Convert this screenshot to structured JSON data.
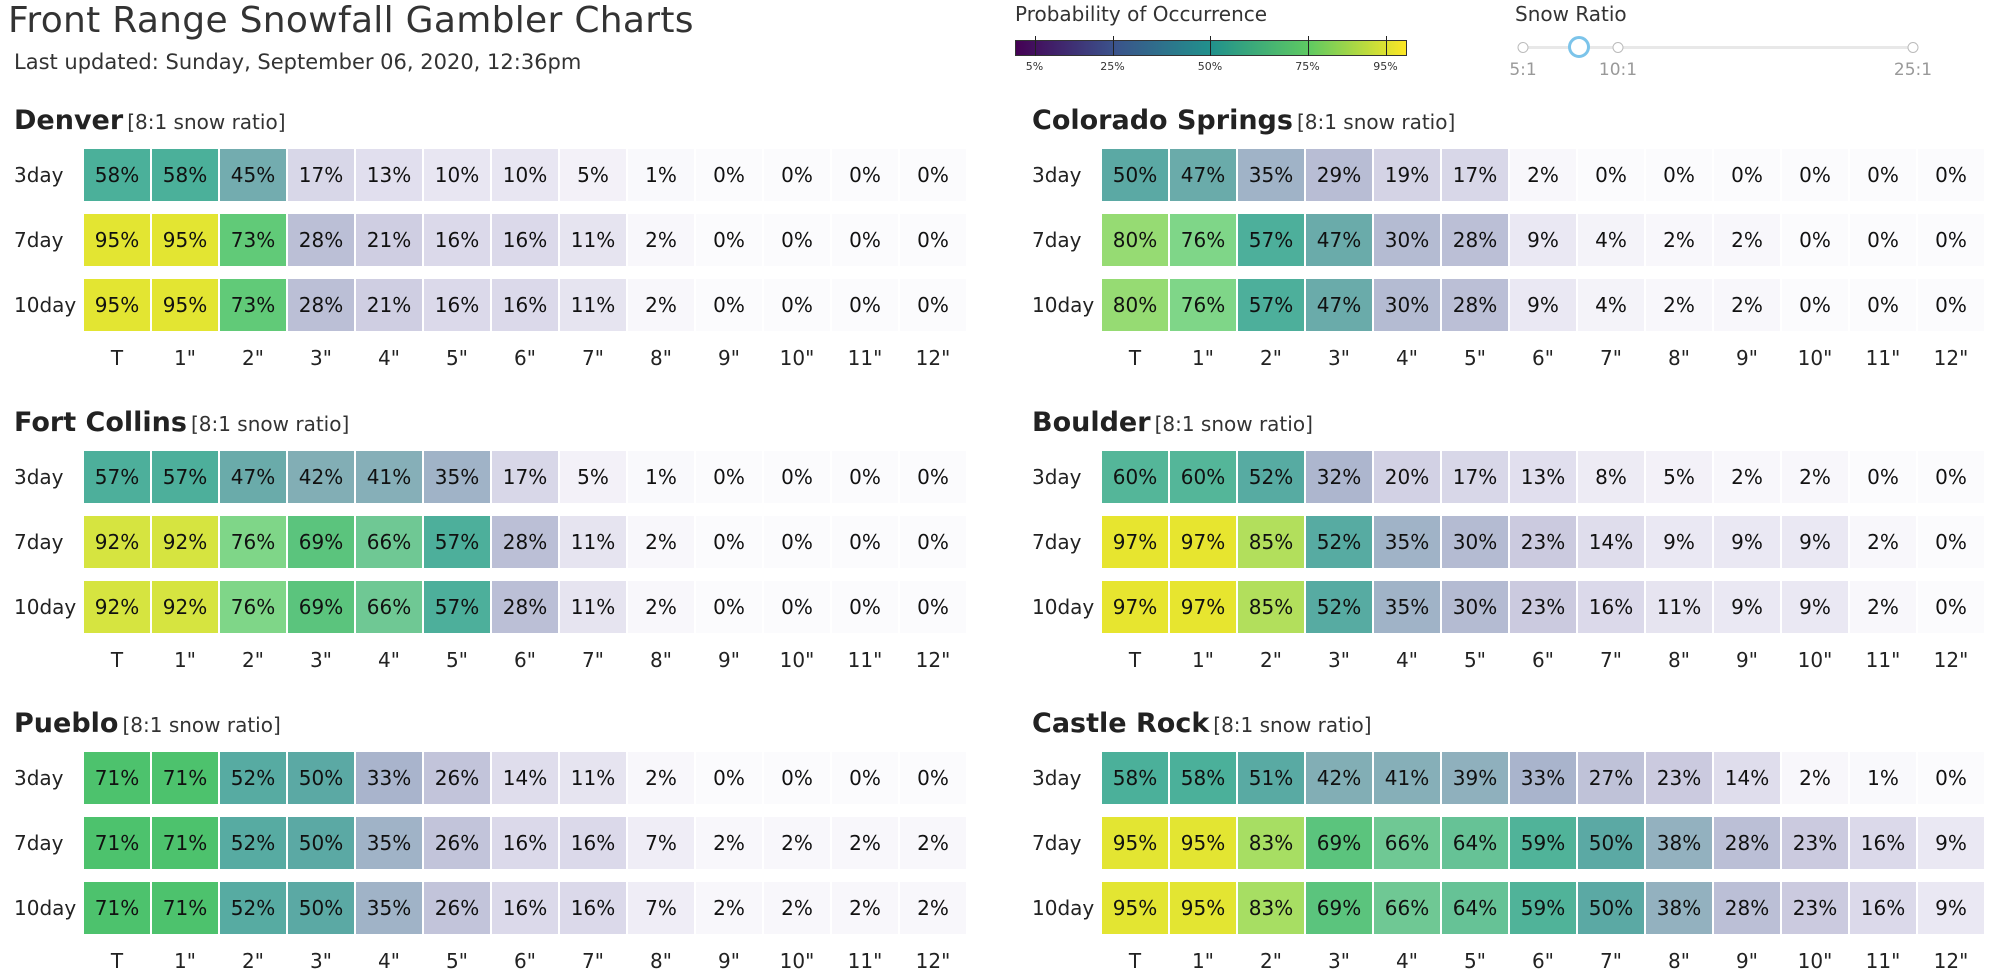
{
  "header": {
    "title": "Front Range Snowfall Gambler Charts",
    "updated": "Last updated: Sunday, September 06, 2020, 12:36pm"
  },
  "legend": {
    "title": "Probability of Occurrence",
    "colormap": [
      "#440154",
      "#3b528b",
      "#21918c",
      "#5ec962",
      "#fde725"
    ],
    "ticks": [
      {
        "label": "5%",
        "value": 5
      },
      {
        "label": "25%",
        "value": 25
      },
      {
        "label": "50%",
        "value": 50
      },
      {
        "label": "75%",
        "value": 75
      },
      {
        "label": "95%",
        "value": 95
      }
    ]
  },
  "snow_ratio": {
    "title": "Snow Ratio",
    "labels": [
      "5:1",
      "10:1",
      "25:1"
    ],
    "selected": "8:1",
    "min": 5,
    "max": 25,
    "value": 8
  },
  "chart_data": [
    {
      "type": "heatmap",
      "title": "Denver",
      "ratio_label": "[8:1 snow ratio]",
      "rows": [
        "3day",
        "7day",
        "10day"
      ],
      "categories": [
        "T",
        "1\"",
        "2\"",
        "3\"",
        "4\"",
        "5\"",
        "6\"",
        "7\"",
        "8\"",
        "9\"",
        "10\"",
        "11\"",
        "12\""
      ],
      "values": [
        [
          58,
          58,
          45,
          17,
          13,
          10,
          10,
          5,
          1,
          0,
          0,
          0,
          0
        ],
        [
          95,
          95,
          73,
          28,
          21,
          16,
          16,
          11,
          2,
          0,
          0,
          0,
          0
        ],
        [
          95,
          95,
          73,
          28,
          21,
          16,
          16,
          11,
          2,
          0,
          0,
          0,
          0
        ]
      ]
    },
    {
      "type": "heatmap",
      "title": "Colorado Springs",
      "ratio_label": "[8:1 snow ratio]",
      "rows": [
        "3day",
        "7day",
        "10day"
      ],
      "categories": [
        "T",
        "1\"",
        "2\"",
        "3\"",
        "4\"",
        "5\"",
        "6\"",
        "7\"",
        "8\"",
        "9\"",
        "10\"",
        "11\"",
        "12\""
      ],
      "values": [
        [
          50,
          47,
          35,
          29,
          19,
          17,
          2,
          0,
          0,
          0,
          0,
          0,
          0
        ],
        [
          80,
          76,
          57,
          47,
          30,
          28,
          9,
          4,
          2,
          2,
          0,
          0,
          0
        ],
        [
          80,
          76,
          57,
          47,
          30,
          28,
          9,
          4,
          2,
          2,
          0,
          0,
          0
        ]
      ]
    },
    {
      "type": "heatmap",
      "title": "Fort Collins",
      "ratio_label": "[8:1 snow ratio]",
      "rows": [
        "3day",
        "7day",
        "10day"
      ],
      "categories": [
        "T",
        "1\"",
        "2\"",
        "3\"",
        "4\"",
        "5\"",
        "6\"",
        "7\"",
        "8\"",
        "9\"",
        "10\"",
        "11\"",
        "12\""
      ],
      "values": [
        [
          57,
          57,
          47,
          42,
          41,
          35,
          17,
          5,
          1,
          0,
          0,
          0,
          0
        ],
        [
          92,
          92,
          76,
          69,
          66,
          57,
          28,
          11,
          2,
          0,
          0,
          0,
          0
        ],
        [
          92,
          92,
          76,
          69,
          66,
          57,
          28,
          11,
          2,
          0,
          0,
          0,
          0
        ]
      ]
    },
    {
      "type": "heatmap",
      "title": "Boulder",
      "ratio_label": "[8:1 snow ratio]",
      "rows": [
        "3day",
        "7day",
        "10day"
      ],
      "categories": [
        "T",
        "1\"",
        "2\"",
        "3\"",
        "4\"",
        "5\"",
        "6\"",
        "7\"",
        "8\"",
        "9\"",
        "10\"",
        "11\"",
        "12\""
      ],
      "values": [
        [
          60,
          60,
          52,
          32,
          20,
          17,
          13,
          8,
          5,
          2,
          2,
          0,
          0
        ],
        [
          97,
          97,
          85,
          52,
          35,
          30,
          23,
          14,
          9,
          9,
          9,
          2,
          0
        ],
        [
          97,
          97,
          85,
          52,
          35,
          30,
          23,
          16,
          11,
          9,
          9,
          2,
          0
        ]
      ]
    },
    {
      "type": "heatmap",
      "title": "Pueblo",
      "ratio_label": "[8:1 snow ratio]",
      "rows": [
        "3day",
        "7day",
        "10day"
      ],
      "categories": [
        "T",
        "1\"",
        "2\"",
        "3\"",
        "4\"",
        "5\"",
        "6\"",
        "7\"",
        "8\"",
        "9\"",
        "10\"",
        "11\"",
        "12\""
      ],
      "values": [
        [
          71,
          71,
          52,
          50,
          33,
          26,
          14,
          11,
          2,
          0,
          0,
          0,
          0
        ],
        [
          71,
          71,
          52,
          50,
          35,
          26,
          16,
          16,
          7,
          2,
          2,
          2,
          2
        ],
        [
          71,
          71,
          52,
          50,
          35,
          26,
          16,
          16,
          7,
          2,
          2,
          2,
          2
        ]
      ]
    },
    {
      "type": "heatmap",
      "title": "Castle Rock",
      "ratio_label": "[8:1 snow ratio]",
      "rows": [
        "3day",
        "7day",
        "10day"
      ],
      "categories": [
        "T",
        "1\"",
        "2\"",
        "3\"",
        "4\"",
        "5\"",
        "6\"",
        "7\"",
        "8\"",
        "9\"",
        "10\"",
        "11\"",
        "12\""
      ],
      "values": [
        [
          58,
          58,
          51,
          42,
          41,
          39,
          33,
          27,
          23,
          14,
          2,
          1,
          0
        ],
        [
          95,
          95,
          83,
          69,
          66,
          64,
          59,
          50,
          38,
          28,
          23,
          16,
          9
        ],
        [
          95,
          95,
          83,
          69,
          66,
          64,
          59,
          50,
          38,
          28,
          23,
          16,
          9
        ]
      ]
    }
  ]
}
